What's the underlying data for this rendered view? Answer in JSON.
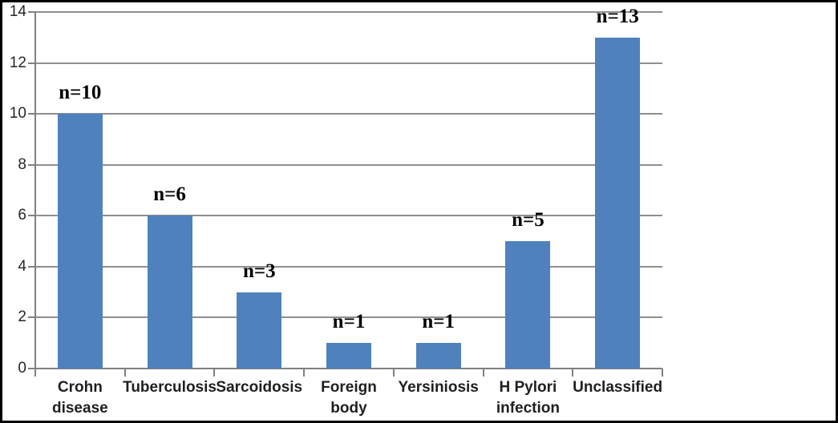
{
  "chart_data": {
    "type": "bar",
    "title": "",
    "xlabel": "",
    "ylabel": "",
    "categories": [
      "Crohn disease",
      "Tuberculosis",
      "Sarcoidosis",
      "Foreign body",
      "Yersiniosis",
      "H Pylori infection",
      "Unclassified"
    ],
    "values": [
      10,
      6,
      3,
      1,
      1,
      5,
      13
    ],
    "bar_labels": [
      "n=10",
      "n=6",
      "n=3",
      "n=1",
      "n=1",
      "n=5",
      "n=13"
    ],
    "y_ticks": [
      0,
      2,
      4,
      6,
      8,
      10,
      12,
      14
    ],
    "ylim": [
      0,
      14
    ],
    "grid": true,
    "legend": "none",
    "colors": {
      "bar": "#4f81bd",
      "gridline": "#8f8f8f",
      "axis": "#808080",
      "tick_text": "#262626",
      "category_text": "#1f1f1f",
      "value_label_text": "#000000",
      "border": "#000000",
      "background": "#ffffff"
    }
  }
}
